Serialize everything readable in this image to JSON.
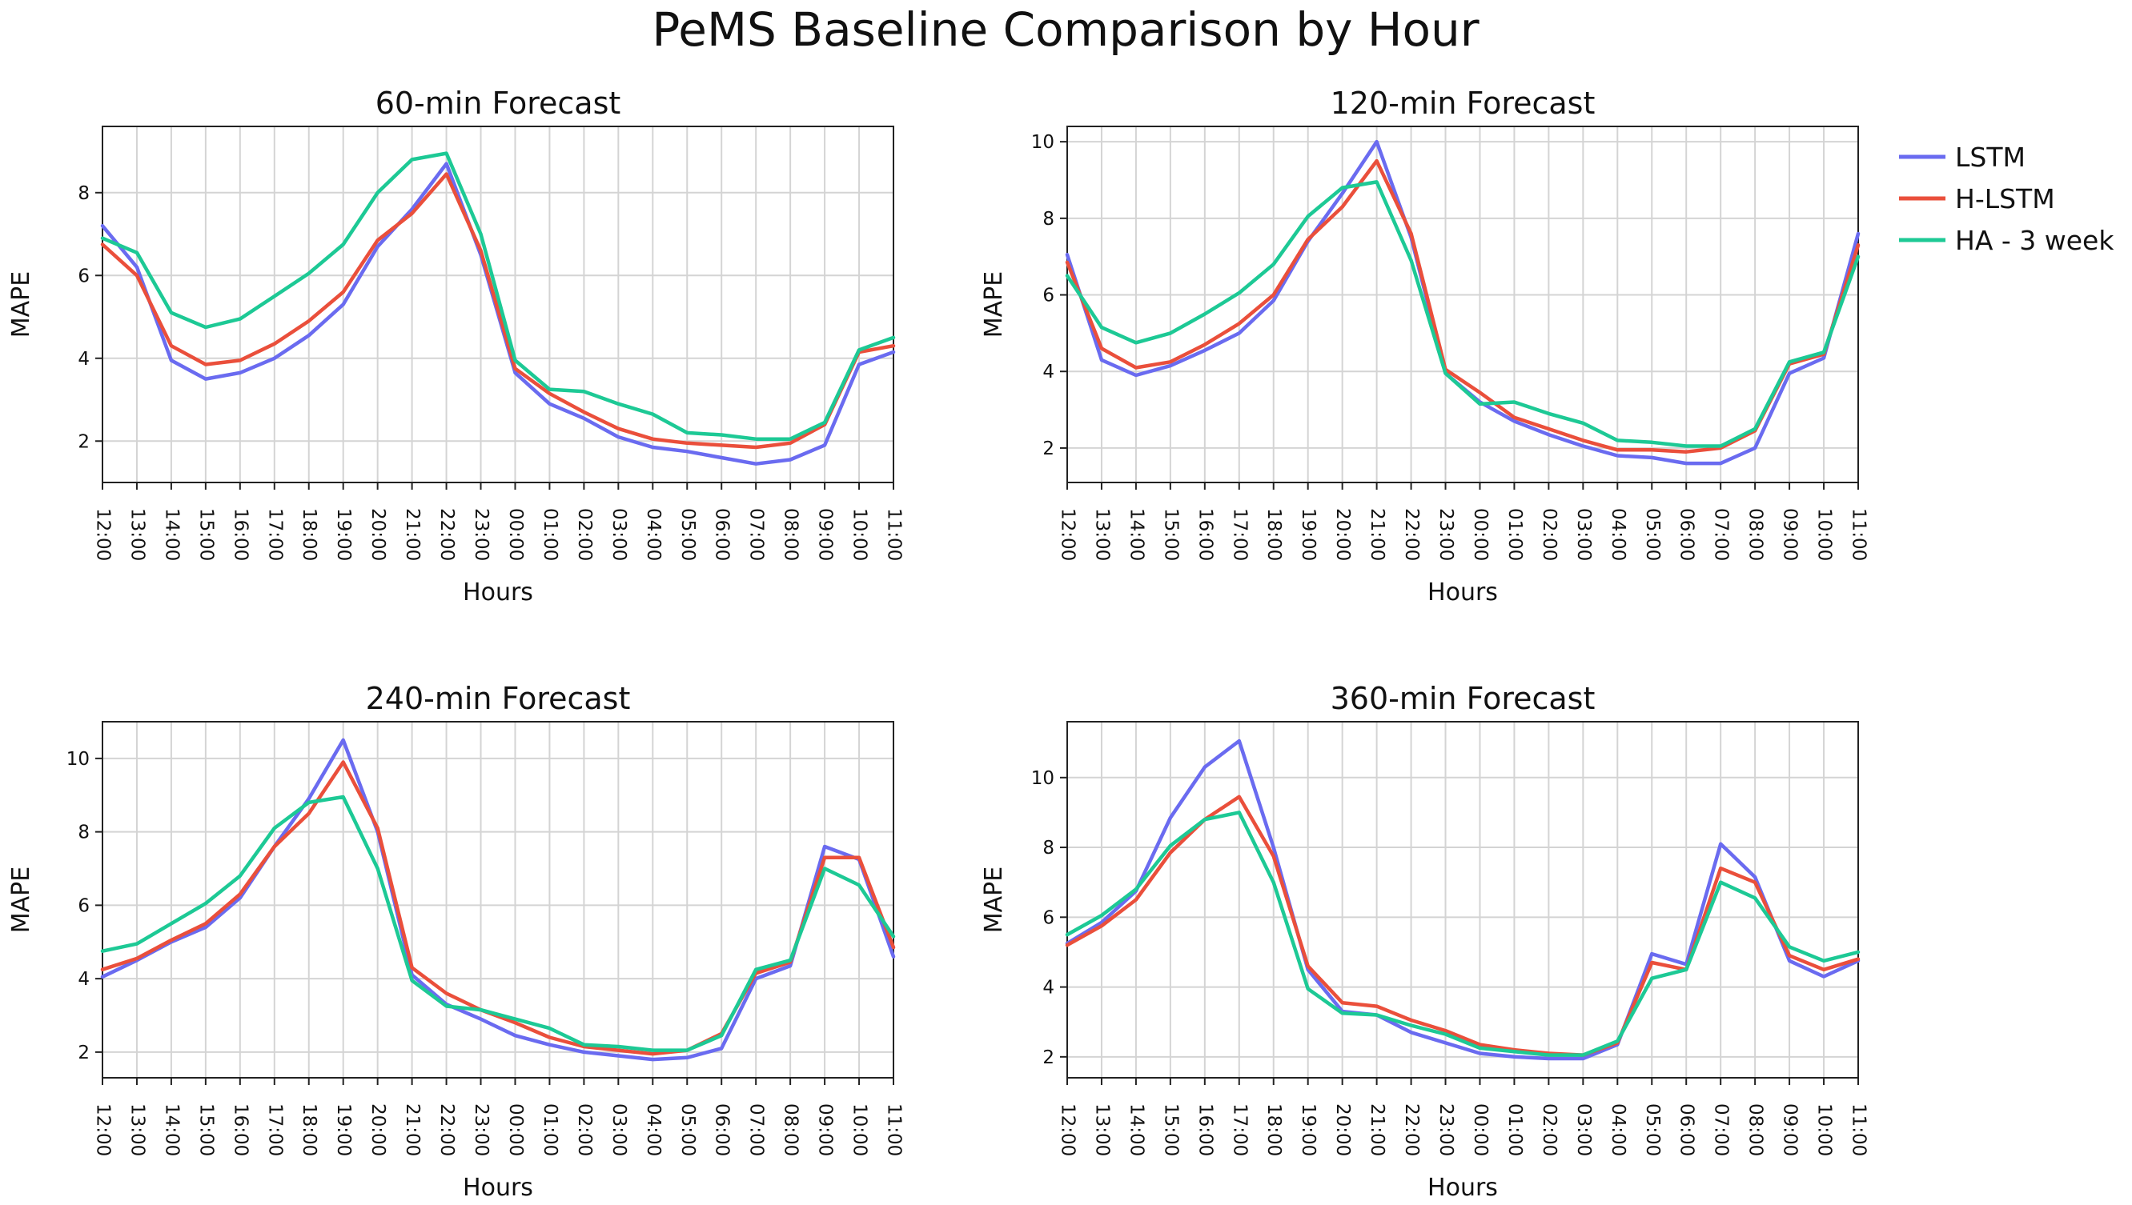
{
  "figure": {
    "title": "PeMS Baseline Comparison by Hour"
  },
  "legend": {
    "placement": "top-right",
    "items": [
      {
        "label": "LSTM",
        "color": "#6a6bf0"
      },
      {
        "label": "H-LSTM",
        "color": "#ea4f3b"
      },
      {
        "label": "HA - 3 week",
        "color": "#1dc995"
      }
    ]
  },
  "chart_data": [
    {
      "type": "line",
      "title": "60-min Forecast",
      "xlabel": "Hours",
      "ylabel": "MAPE",
      "ylim": [
        1.0,
        9.6
      ],
      "yticks": [
        2,
        4,
        6,
        8
      ],
      "grid": true,
      "categories": [
        "12:00",
        "13:00",
        "14:00",
        "15:00",
        "16:00",
        "17:00",
        "18:00",
        "19:00",
        "20:00",
        "21:00",
        "22:00",
        "23:00",
        "00:00",
        "01:00",
        "02:00",
        "03:00",
        "04:00",
        "05:00",
        "06:00",
        "07:00",
        "08:00",
        "09:00",
        "10:00",
        "11:00"
      ],
      "series": [
        {
          "name": "LSTM",
          "values": [
            7.2,
            6.2,
            3.95,
            3.5,
            3.65,
            4.0,
            4.55,
            5.3,
            6.7,
            7.6,
            8.7,
            6.5,
            3.65,
            2.9,
            2.55,
            2.1,
            1.85,
            1.75,
            1.6,
            1.45,
            1.55,
            1.9,
            3.85,
            4.15
          ]
        },
        {
          "name": "H-LSTM",
          "values": [
            6.75,
            6.0,
            4.3,
            3.85,
            3.95,
            4.35,
            4.9,
            5.6,
            6.85,
            7.5,
            8.45,
            6.6,
            3.75,
            3.15,
            2.7,
            2.3,
            2.05,
            1.95,
            1.9,
            1.85,
            1.95,
            2.4,
            4.15,
            4.3
          ]
        },
        {
          "name": "HA - 3 week",
          "values": [
            6.9,
            6.55,
            5.1,
            4.75,
            4.95,
            5.5,
            6.05,
            6.75,
            8.0,
            8.8,
            8.95,
            7.0,
            3.95,
            3.25,
            3.2,
            2.9,
            2.65,
            2.2,
            2.15,
            2.05,
            2.05,
            2.45,
            4.2,
            4.5
          ]
        }
      ]
    },
    {
      "type": "line",
      "title": "120-min Forecast",
      "xlabel": "Hours",
      "ylabel": "MAPE",
      "ylim": [
        1.1,
        10.4
      ],
      "yticks": [
        2,
        4,
        6,
        8,
        10
      ],
      "grid": true,
      "categories": [
        "12:00",
        "13:00",
        "14:00",
        "15:00",
        "16:00",
        "17:00",
        "18:00",
        "19:00",
        "20:00",
        "21:00",
        "22:00",
        "23:00",
        "00:00",
        "01:00",
        "02:00",
        "03:00",
        "04:00",
        "05:00",
        "06:00",
        "07:00",
        "08:00",
        "09:00",
        "10:00",
        "11:00"
      ],
      "series": [
        {
          "name": "LSTM",
          "values": [
            7.05,
            4.3,
            3.9,
            4.15,
            4.55,
            5.0,
            5.85,
            7.4,
            8.65,
            10.0,
            7.5,
            3.95,
            3.2,
            2.7,
            2.35,
            2.05,
            1.8,
            1.75,
            1.6,
            1.6,
            2.0,
            3.95,
            4.35,
            7.6
          ]
        },
        {
          "name": "H-LSTM",
          "values": [
            6.85,
            4.6,
            4.1,
            4.25,
            4.7,
            5.25,
            6.0,
            7.45,
            8.3,
            9.5,
            7.6,
            4.05,
            3.45,
            2.8,
            2.5,
            2.2,
            1.95,
            1.95,
            1.9,
            2.0,
            2.45,
            4.2,
            4.45,
            7.3
          ]
        },
        {
          "name": "HA - 3 week",
          "values": [
            6.5,
            5.15,
            4.75,
            5.0,
            5.5,
            6.05,
            6.8,
            8.05,
            8.8,
            8.95,
            6.9,
            3.95,
            3.15,
            3.2,
            2.9,
            2.65,
            2.2,
            2.15,
            2.05,
            2.05,
            2.5,
            4.25,
            4.5,
            7.0
          ]
        }
      ]
    },
    {
      "type": "line",
      "title": "240-min Forecast",
      "xlabel": "Hours",
      "ylabel": "MAPE",
      "ylim": [
        1.3,
        11.0
      ],
      "yticks": [
        2,
        4,
        6,
        8,
        10
      ],
      "grid": true,
      "categories": [
        "12:00",
        "13:00",
        "14:00",
        "15:00",
        "16:00",
        "17:00",
        "18:00",
        "19:00",
        "20:00",
        "21:00",
        "22:00",
        "23:00",
        "00:00",
        "01:00",
        "02:00",
        "03:00",
        "04:00",
        "05:00",
        "06:00",
        "07:00",
        "08:00",
        "09:00",
        "10:00",
        "11:00"
      ],
      "series": [
        {
          "name": "LSTM",
          "values": [
            4.05,
            4.5,
            5.0,
            5.4,
            6.2,
            7.6,
            8.9,
            10.5,
            8.0,
            4.1,
            3.3,
            2.9,
            2.45,
            2.2,
            2.0,
            1.9,
            1.8,
            1.85,
            2.1,
            4.0,
            4.35,
            7.6,
            7.25,
            4.6
          ]
        },
        {
          "name": "H-LSTM",
          "values": [
            4.25,
            4.55,
            5.05,
            5.5,
            6.3,
            7.6,
            8.5,
            9.9,
            8.1,
            4.3,
            3.6,
            3.15,
            2.8,
            2.4,
            2.15,
            2.05,
            1.95,
            2.05,
            2.5,
            4.15,
            4.45,
            7.3,
            7.3,
            4.85
          ]
        },
        {
          "name": "HA - 3 week",
          "values": [
            4.75,
            4.95,
            5.5,
            6.05,
            6.8,
            8.1,
            8.8,
            8.95,
            7.0,
            3.95,
            3.25,
            3.15,
            2.9,
            2.65,
            2.2,
            2.15,
            2.05,
            2.05,
            2.45,
            4.25,
            4.5,
            7.0,
            6.55,
            5.15
          ]
        }
      ]
    },
    {
      "type": "line",
      "title": "360-min Forecast",
      "xlabel": "Hours",
      "ylabel": "MAPE",
      "ylim": [
        1.4,
        11.6
      ],
      "yticks": [
        2,
        4,
        6,
        8,
        10
      ],
      "grid": true,
      "categories": [
        "12:00",
        "13:00",
        "14:00",
        "15:00",
        "16:00",
        "17:00",
        "18:00",
        "19:00",
        "20:00",
        "21:00",
        "22:00",
        "23:00",
        "00:00",
        "01:00",
        "02:00",
        "03:00",
        "04:00",
        "05:00",
        "06:00",
        "07:00",
        "08:00",
        "09:00",
        "10:00",
        "11:00"
      ],
      "series": [
        {
          "name": "LSTM",
          "values": [
            5.25,
            5.85,
            6.75,
            8.85,
            10.3,
            11.05,
            8.0,
            4.5,
            3.3,
            3.2,
            2.7,
            2.4,
            2.1,
            2.0,
            1.95,
            1.95,
            2.35,
            4.95,
            4.65,
            8.1,
            7.15,
            4.75,
            4.3,
            4.75
          ]
        },
        {
          "name": "H-LSTM",
          "values": [
            5.2,
            5.75,
            6.5,
            7.85,
            8.8,
            9.45,
            7.75,
            4.6,
            3.55,
            3.45,
            3.05,
            2.75,
            2.35,
            2.2,
            2.1,
            2.05,
            2.4,
            4.7,
            4.5,
            7.4,
            7.0,
            4.9,
            4.5,
            4.8
          ]
        },
        {
          "name": "HA - 3 week",
          "values": [
            5.5,
            6.05,
            6.8,
            8.05,
            8.8,
            9.0,
            7.0,
            3.95,
            3.25,
            3.2,
            2.9,
            2.65,
            2.25,
            2.15,
            2.05,
            2.05,
            2.45,
            4.25,
            4.5,
            7.0,
            6.55,
            5.15,
            4.75,
            5.0
          ]
        }
      ]
    }
  ]
}
